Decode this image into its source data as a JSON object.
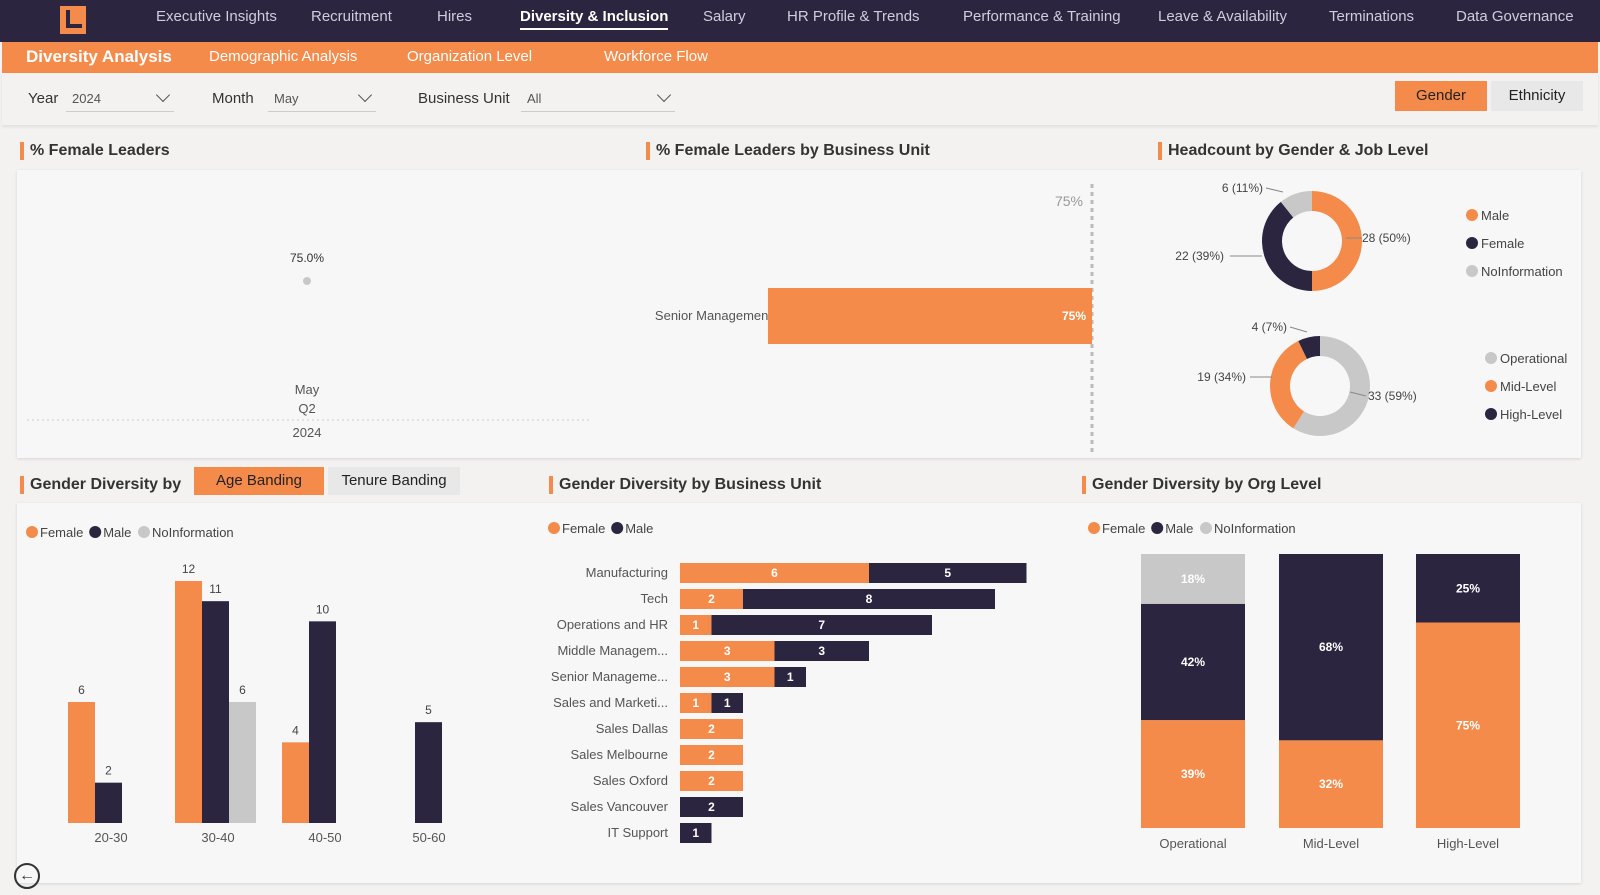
{
  "nav": {
    "items": [
      "Executive Insights",
      "Recruitment",
      "Hires",
      "Diversity & Inclusion",
      "Salary",
      "HR Profile & Trends",
      "Performance & Training",
      "Leave & Availability",
      "Terminations",
      "Data Governance"
    ],
    "active": "Diversity & Inclusion"
  },
  "subnav": {
    "items": [
      "Diversity Analysis",
      "Demographic Analysis",
      "Organization Level",
      "Workforce Flow"
    ],
    "active": "Diversity Analysis"
  },
  "filters": {
    "year_label": "Year",
    "year_value": "2024",
    "month_label": "Month",
    "month_value": "May",
    "bu_label": "Business Unit",
    "bu_value": "All"
  },
  "toggle": {
    "gender": "Gender",
    "ethnicity": "Ethnicity"
  },
  "colors": {
    "female": "#f58b4a",
    "male": "#2c2540",
    "noinfo": "#c8c8c8",
    "accent": "#f58b4a"
  },
  "panels": {
    "female_leaders": {
      "title": "% Female Leaders",
      "value_label": "75.0%",
      "value": 75.0,
      "x_month": "May",
      "x_quarter": "Q2",
      "x_year": "2024"
    },
    "female_leaders_bu": {
      "title": "% Female Leaders by Business Unit",
      "ref_label": "75%",
      "category": "Senior Management",
      "value": 75,
      "value_label": "75%"
    },
    "headcount": {
      "title": "Headcount by Gender & Job Level",
      "donut1": {
        "slices": [
          {
            "name": "Male",
            "value": 28,
            "label": "28 (50%)",
            "color": "#f58b4a"
          },
          {
            "name": "Female",
            "value": 22,
            "label": "22 (39%)",
            "color": "#2c2540"
          },
          {
            "name": "NoInformation",
            "value": 6,
            "label": "6 (11%)",
            "color": "#c8c8c8"
          }
        ],
        "legend": [
          "Male",
          "Female",
          "NoInformation"
        ]
      },
      "donut2": {
        "slices": [
          {
            "name": "Operational",
            "value": 33,
            "label": "33 (59%)",
            "color": "#c8c8c8"
          },
          {
            "name": "Mid-Level",
            "value": 19,
            "label": "19 (34%)",
            "color": "#f58b4a"
          },
          {
            "name": "High-Level",
            "value": 4,
            "label": "4 (7%)",
            "color": "#2c2540"
          }
        ],
        "legend": [
          "Operational",
          "Mid-Level",
          "High-Level"
        ]
      }
    },
    "age": {
      "title": "Gender Diversity by",
      "tab_age": "Age Banding",
      "tab_tenure": "Tenure Banding",
      "legend": [
        "Female",
        "Male",
        "NoInformation"
      ]
    },
    "bu": {
      "title": "Gender Diversity by Business Unit",
      "legend": [
        "Female",
        "Male"
      ]
    },
    "org": {
      "title": "Gender Diversity by Org Level",
      "legend": [
        "Female",
        "Male",
        "NoInformation"
      ]
    }
  },
  "chart_data": [
    {
      "type": "bar",
      "title": "Gender Diversity by Age Banding",
      "categories": [
        "20-30",
        "30-40",
        "40-50",
        "50-60"
      ],
      "series": [
        {
          "name": "Female",
          "values": [
            6,
            12,
            4,
            null
          ]
        },
        {
          "name": "Male",
          "values": [
            2,
            11,
            10,
            5
          ]
        },
        {
          "name": "NoInformation",
          "values": [
            null,
            6,
            null,
            null
          ]
        }
      ],
      "ylim": [
        0,
        12
      ]
    },
    {
      "type": "bar",
      "orientation": "horizontal-stacked",
      "title": "Gender Diversity by Business Unit",
      "categories": [
        "Manufacturing",
        "Tech",
        "Operations and HR",
        "Middle Managem...",
        "Senior Manageme...",
        "Sales and Marketi...",
        "Sales Dallas",
        "Sales Melbourne",
        "Sales Oxford",
        "Sales Vancouver",
        "IT Support"
      ],
      "series": [
        {
          "name": "Female",
          "values": [
            6,
            2,
            1,
            3,
            3,
            1,
            2,
            2,
            2,
            0,
            0
          ]
        },
        {
          "name": "Male",
          "values": [
            5,
            8,
            7,
            3,
            1,
            1,
            0,
            0,
            0,
            2,
            1
          ]
        }
      ]
    },
    {
      "type": "bar",
      "orientation": "stacked-100",
      "title": "Gender Diversity by Org Level",
      "categories": [
        "Operational",
        "Mid-Level",
        "High-Level"
      ],
      "series": [
        {
          "name": "Female",
          "values": [
            39,
            32,
            75
          ],
          "labels": [
            "39%",
            "32%",
            "75%"
          ]
        },
        {
          "name": "Male",
          "values": [
            42,
            68,
            25
          ],
          "labels": [
            "42%",
            "68%",
            "25%"
          ]
        },
        {
          "name": "NoInformation",
          "values": [
            18,
            0,
            0
          ],
          "labels": [
            "18%",
            "",
            ""
          ]
        }
      ]
    }
  ]
}
